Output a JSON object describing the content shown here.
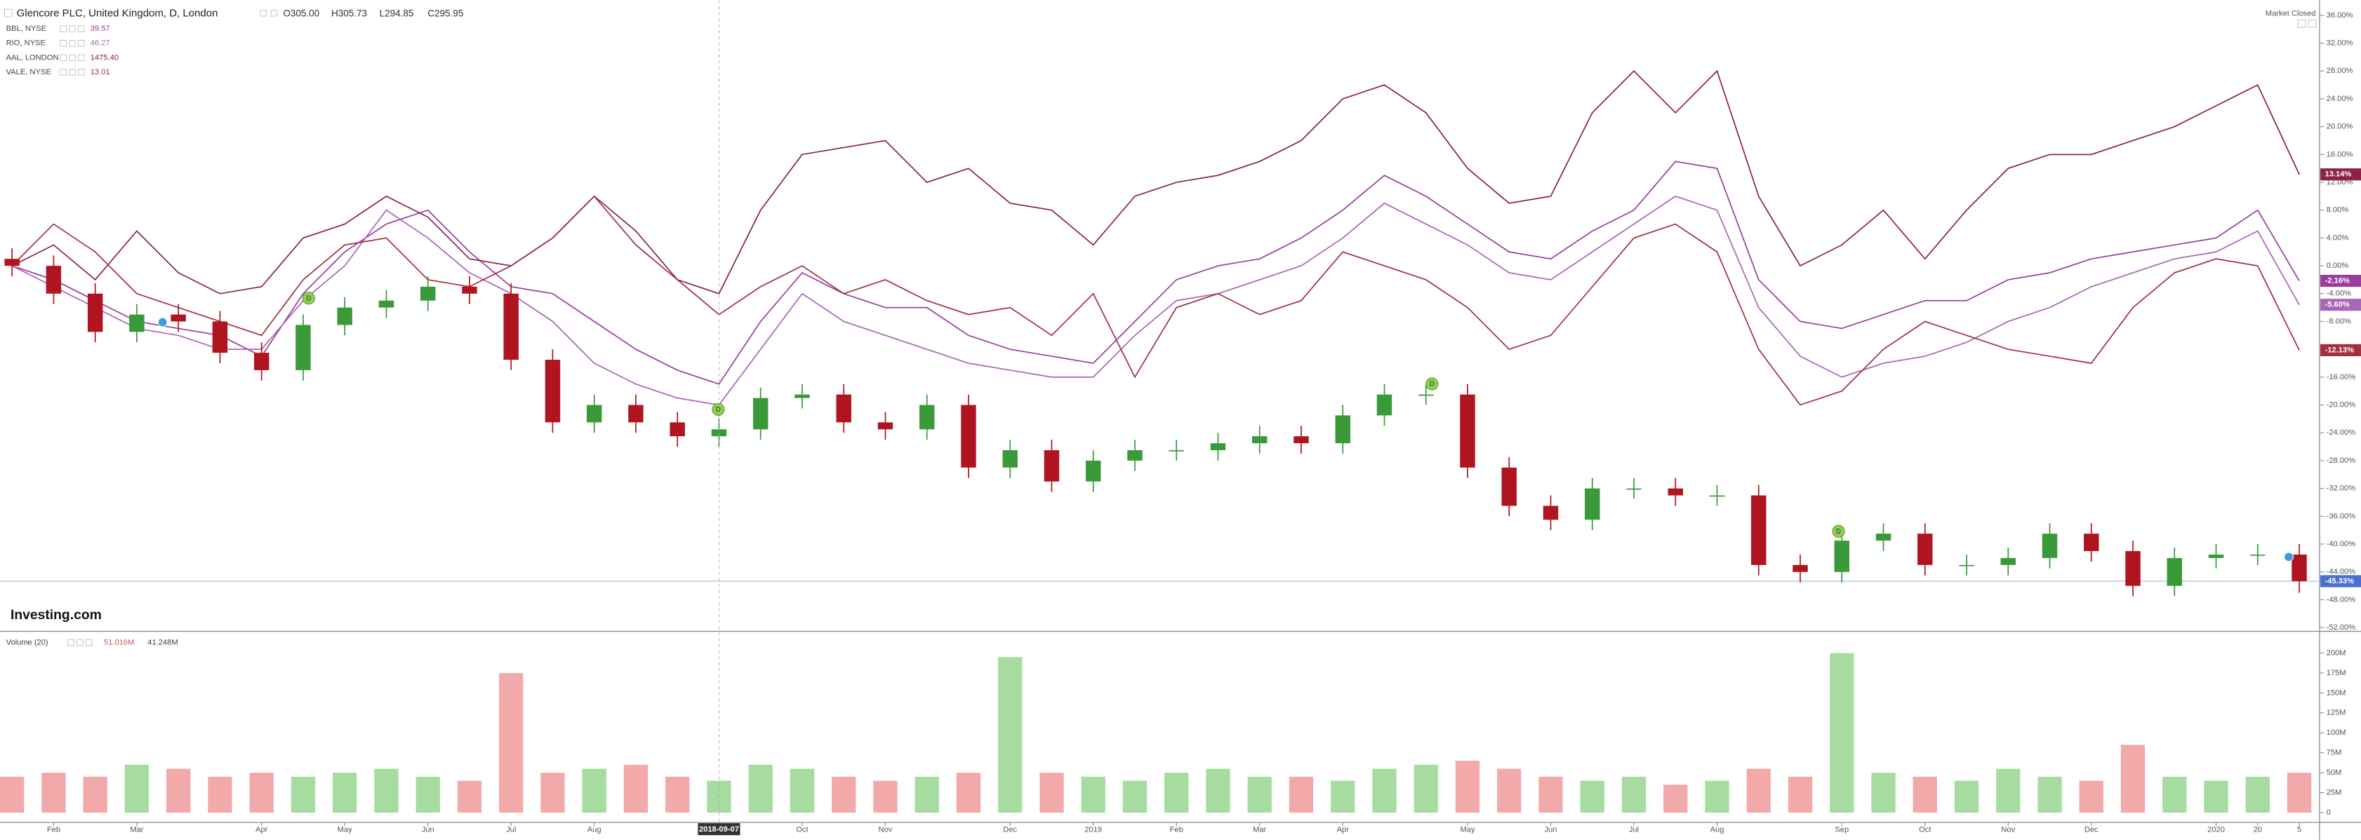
{
  "chart_data": [
    {
      "type": "candlestick",
      "title": "Glencore PLC, United Kingdom, D, London",
      "ohlc_text": [
        "O305.00",
        "H305.73",
        "L294.85",
        "C295.95"
      ],
      "market_status": "Market Closed",
      "logo": "Investing.com",
      "categories": [
        null,
        "Feb",
        null,
        "Mar",
        null,
        null,
        "Apr",
        null,
        "May",
        null,
        "Jun",
        null,
        "Jul",
        null,
        "Aug",
        null,
        null,
        "2018-09-07",
        null,
        "Oct",
        null,
        "Nov",
        null,
        null,
        "Dec",
        null,
        "2019",
        null,
        "Feb",
        null,
        "Mar",
        null,
        "Apr",
        null,
        null,
        "May",
        null,
        "Jun",
        null,
        "Jul",
        null,
        "Aug",
        null,
        null,
        "Sep",
        null,
        "Oct",
        null,
        "Nov",
        null,
        "Dec",
        null,
        null,
        "2020",
        "20",
        "5"
      ],
      "crosshair_index": 17,
      "open": [
        1,
        0,
        -4,
        -9.5,
        -7,
        -8,
        -12.5,
        -15,
        -8.5,
        -6,
        -5,
        -3,
        -4,
        -13.5,
        -22.5,
        -20,
        -22.5,
        -24.5,
        -23.5,
        -19,
        -18.5,
        -22.5,
        -23.5,
        -20,
        -29,
        -26.5,
        -31,
        -28,
        -26.5,
        -26.5,
        -25.5,
        -24.5,
        -25.5,
        -21.5,
        -18.5,
        -18.5,
        -29,
        -34.5,
        -36.5,
        -32,
        -32,
        -33,
        -33,
        -43,
        -44,
        -39.5,
        -38.5,
        -43,
        -43,
        -42,
        -38.5,
        -41,
        -46,
        -42,
        -41.5,
        -41.5
      ],
      "high": [
        2.5,
        1.5,
        -2.5,
        -5.5,
        -5.5,
        -6.5,
        -11,
        -7,
        -4.5,
        -3.5,
        -1.5,
        -1.5,
        -2.5,
        -12,
        -18.5,
        -18.5,
        -21,
        -22,
        -17.5,
        -17,
        -17,
        -21,
        -18.5,
        -18.5,
        -25,
        -25,
        -26.5,
        -25,
        -25,
        -24,
        -23,
        -23,
        -20,
        -17,
        -17,
        -17,
        -27.5,
        -33,
        -30.5,
        -30.5,
        -30.5,
        -31.5,
        -31.5,
        -41.5,
        -38,
        -37,
        -37,
        -41.5,
        -40.5,
        -37,
        -37,
        -39.5,
        -40.5,
        -40,
        -40,
        -40
      ],
      "low": [
        -1.5,
        -5.5,
        -11,
        -11,
        -9.5,
        -14,
        -16.5,
        -16.5,
        -10,
        -7.5,
        -6.5,
        -5.5,
        -15,
        -24,
        -24,
        -24,
        -26,
        -26,
        -25,
        -20.5,
        -24,
        -25,
        -25,
        -30.5,
        -30.5,
        -32.5,
        -32.5,
        -29.5,
        -28,
        -28,
        -27,
        -27,
        -27,
        -23,
        -20,
        -30.5,
        -36,
        -38,
        -38,
        -33.5,
        -34.5,
        -34.5,
        -44.5,
        -45.5,
        -45.5,
        -41,
        -44.5,
        -44.5,
        -44.5,
        -43.5,
        -42.5,
        -47.5,
        -47.5,
        -43.5,
        -43,
        -47
      ],
      "close": [
        0,
        -4,
        -9.5,
        -7,
        -8,
        -12.5,
        -15,
        -8.5,
        -6,
        -5,
        -3,
        -4,
        -13.5,
        -22.5,
        -20,
        -22.5,
        -24.5,
        -23.5,
        -19,
        -18.5,
        -22.5,
        -23.5,
        -20,
        -29,
        -26.5,
        -31,
        -28,
        -26.5,
        -26.5,
        -25.5,
        -24.5,
        -25.5,
        -21.5,
        -18.5,
        -18.5,
        -29,
        -34.5,
        -36.5,
        -32,
        -32,
        -33,
        -33,
        -43,
        -44,
        -39.5,
        -38.5,
        -43,
        -43,
        -42,
        -38.5,
        -41,
        -46,
        -42,
        -41.5,
        -41.5,
        -45.33
      ],
      "close_label": "-45.33%",
      "up_color": "#3a9a3a",
      "down_color": "#b0151f",
      "last_line_color": "#9cc3e0",
      "series": [
        {
          "name": "BBL, NYSE",
          "last": "39.57",
          "color": "#9a3d9e",
          "last_label": "-2.16%",
          "values": [
            0,
            -2,
            -5,
            -8,
            -9,
            -10,
            -13,
            -4,
            2,
            6,
            8,
            2,
            -3,
            -4,
            -8,
            -12,
            -15,
            -17,
            -8,
            -1,
            -4,
            -6,
            -6,
            -10,
            -12,
            -13,
            -14,
            -8,
            -2,
            0,
            1,
            4,
            8,
            13,
            10,
            6,
            2,
            1,
            5,
            8,
            15,
            14,
            -2,
            -8,
            -9,
            -7,
            -5,
            -5,
            -2,
            -1,
            1,
            2,
            3,
            4,
            8,
            -2.16
          ]
        },
        {
          "name": "RIO, NYSE",
          "last": "46.27",
          "color": "#a866b6",
          "last_label": "-5.60%",
          "values": [
            0,
            -3,
            -6,
            -9,
            -10,
            -12,
            -12,
            -5,
            0,
            8,
            4,
            -1,
            -4,
            -8,
            -14,
            -17,
            -19,
            -20,
            -12,
            -4,
            -8,
            -10,
            -12,
            -14,
            -15,
            -16,
            -16,
            -10,
            -5,
            -4,
            -2,
            0,
            4,
            9,
            6,
            3,
            -1,
            -2,
            2,
            6,
            10,
            8,
            -6,
            -13,
            -16,
            -14,
            -13,
            -11,
            -8,
            -6,
            -3,
            -1,
            1,
            2,
            5,
            -5.6
          ]
        },
        {
          "name": "AAL, LONDON",
          "last": "1475.40",
          "color": "#8b2346",
          "last_label": "13.14%",
          "values": [
            0,
            3,
            -2,
            5,
            -1,
            -4,
            -3,
            4,
            6,
            10,
            7,
            1,
            0,
            4,
            10,
            5,
            -2,
            -4,
            8,
            16,
            17,
            18,
            12,
            14,
            9,
            8,
            3,
            10,
            12,
            13,
            15,
            18,
            24,
            26,
            22,
            14,
            9,
            10,
            22,
            28,
            22,
            28,
            10,
            0,
            3,
            8,
            1,
            8,
            14,
            16,
            16,
            18,
            20,
            23,
            26,
            13.14
          ]
        },
        {
          "name": "VALE, NYSE",
          "last": "13.01",
          "color": "#a3303e",
          "last_label": "-12.13%",
          "values": [
            0,
            6,
            2,
            -4,
            -6,
            -8,
            -10,
            -2,
            3,
            4,
            -2,
            -3,
            0,
            4,
            10,
            3,
            -2,
            -7,
            -3,
            0,
            -4,
            -2,
            -5,
            -7,
            -6,
            -10,
            -4,
            -16,
            -6,
            -4,
            -7,
            -5,
            2,
            0,
            -2,
            -6,
            -12,
            -10,
            -3,
            4,
            6,
            2,
            -12,
            -20,
            -18,
            -12,
            -8,
            -10,
            -12,
            -13,
            -14,
            -6,
            -1,
            1,
            0,
            -12.13
          ]
        }
      ],
      "events": [
        {
          "label": "D"
        },
        {
          "label": "D"
        },
        {
          "label": "D"
        },
        {
          "label": "D"
        }
      ],
      "ylim": [
        -52,
        36
      ],
      "yticks": [
        {
          "value": 36,
          "label": "36.00%"
        },
        {
          "value": 32,
          "label": "32.00%"
        },
        {
          "value": 28,
          "label": "28.00%"
        },
        {
          "value": 24,
          "label": "24.00%"
        },
        {
          "value": 20,
          "label": "20.00%"
        },
        {
          "value": 16,
          "label": "16.00%"
        },
        {
          "value": 12,
          "label": "12.00%"
        },
        {
          "value": 8,
          "label": "8.00%"
        },
        {
          "value": 4,
          "label": "4.00%"
        },
        {
          "value": 0,
          "label": "0.00%"
        },
        {
          "value": -4,
          "label": "-4.00%"
        },
        {
          "value": -8,
          "label": "-8.00%"
        },
        {
          "value": -12,
          "label": "-12.00%"
        },
        {
          "value": -16,
          "label": "-16.00%"
        },
        {
          "value": -20,
          "label": "-20.00%"
        },
        {
          "value": -24,
          "label": "-24.00%"
        },
        {
          "value": -28,
          "label": "-28.00%"
        },
        {
          "value": -32,
          "label": "-32.00%"
        },
        {
          "value": -36,
          "label": "-36.00%"
        },
        {
          "value": -40,
          "label": "-40.00%"
        },
        {
          "value": -44,
          "label": "-44.00%"
        },
        {
          "value": -48,
          "label": "-48.00%"
        },
        {
          "value": -52,
          "label": "-52.00%"
        }
      ]
    },
    {
      "type": "bar",
      "title": "Volume (20)",
      "legend_values": [
        "51.016M",
        "41.248M"
      ],
      "up_color": "#a6dca0",
      "down_color": "#f2a9a9",
      "values": [
        45,
        50,
        45,
        60,
        55,
        45,
        50,
        45,
        50,
        55,
        45,
        40,
        175,
        50,
        55,
        60,
        45,
        40,
        60,
        55,
        45,
        40,
        45,
        50,
        195,
        50,
        45,
        40,
        50,
        55,
        45,
        45,
        40,
        55,
        60,
        65,
        55,
        45,
        40,
        45,
        35,
        40,
        55,
        45,
        200,
        50,
        45,
        40,
        55,
        45,
        40,
        85,
        45,
        40,
        45,
        50
      ],
      "ylim": [
        0,
        215
      ],
      "yticks": [
        0,
        {
          "value": 25,
          "label": "25M"
        },
        {
          "value": 50,
          "label": "50M"
        },
        {
          "value": 75,
          "label": "75M"
        },
        {
          "value": 100,
          "label": "100M"
        },
        {
          "value": 125,
          "label": "125M"
        },
        {
          "value": 150,
          "label": "150M"
        },
        {
          "value": 175,
          "label": "175M"
        },
        {
          "value": 200,
          "label": "200M"
        }
      ]
    }
  ]
}
